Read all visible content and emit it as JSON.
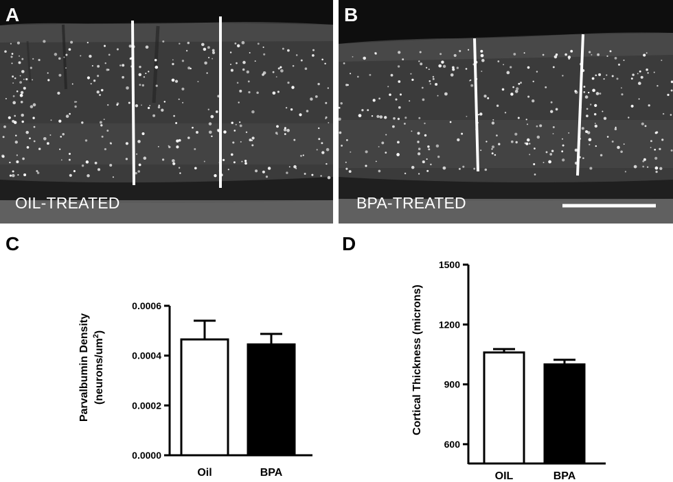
{
  "panels": {
    "a": {
      "letter": "A",
      "treatment_label": "OIL-TREATED"
    },
    "b": {
      "letter": "B",
      "treatment_label": "BPA-TREATED"
    },
    "c": {
      "letter": "C"
    },
    "d": {
      "letter": "D"
    }
  },
  "colors": {
    "oil_bar": "#ffffff",
    "bpa_bar": "#000000",
    "stain": "#ffffff",
    "tissue": "#3d3d3d"
  },
  "chart_data": [
    {
      "panel": "C",
      "type": "bar",
      "categories": [
        "Oil",
        "BPA"
      ],
      "values": [
        0.000465,
        0.000445
      ],
      "errors": [
        7.5e-05,
        4.2e-05
      ],
      "ylabel_line1": "Parvalbumin Density",
      "ylabel_line2": "(neurons/um",
      "ylabel_sup": "2",
      "ylabel_close": ")",
      "ylim": [
        0,
        0.0006
      ],
      "yticks": [
        "0.0000",
        "0.0002",
        "0.0004",
        "0.0006"
      ],
      "ytick_values": [
        0,
        0.0002,
        0.0004,
        0.0006
      ]
    },
    {
      "panel": "D",
      "type": "bar",
      "categories": [
        "OIL",
        "BPA"
      ],
      "values": [
        1060,
        1000
      ],
      "errors": [
        17,
        23
      ],
      "ylabel": "Cortical Thickness (microns)",
      "ylim": [
        500,
        1500
      ],
      "yticks": [
        "600",
        "900",
        "1200",
        "1500"
      ],
      "ytick_values": [
        600,
        900,
        1200,
        1500
      ]
    }
  ]
}
